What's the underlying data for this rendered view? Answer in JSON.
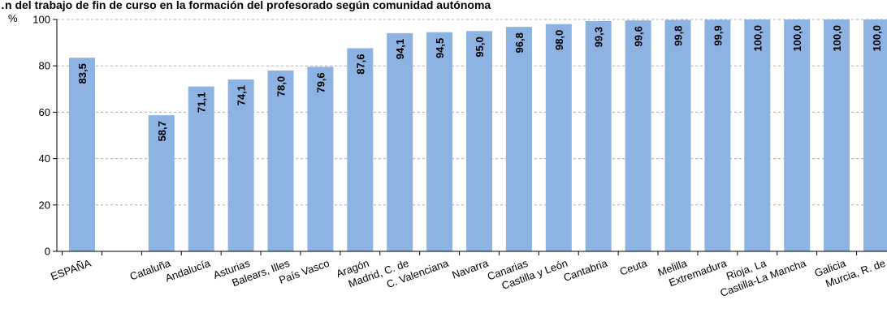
{
  "chart_data": {
    "type": "bar",
    "title": "…n del trabajo de fin de curso en la formación del profesorado según comunidad autónoma",
    "ylabel": "%",
    "xlabel": "",
    "ylim": [
      0,
      100
    ],
    "yticks": [
      0,
      20,
      40,
      60,
      80,
      100
    ],
    "grid": true,
    "bar_color": "#8db3e2",
    "categories": [
      "ESPAÑA",
      "Cataluña",
      "Andalucía",
      "Asturias",
      "Balears, Illes",
      "País Vasco",
      "Aragón",
      "Madrid, C. de",
      "C. Valenciana",
      "Navarra",
      "Canarias",
      "Castilla y León",
      "Cantabria",
      "Ceuta",
      "Melilla",
      "Extremadura",
      "Rioja, La",
      "Castilla-La Mancha",
      "Galicia",
      "Murcia, R. de"
    ],
    "values": [
      83.5,
      58.7,
      71.1,
      74.1,
      78.0,
      79.6,
      87.6,
      94.1,
      94.5,
      95.0,
      96.8,
      98.0,
      99.3,
      99.6,
      99.8,
      99.9,
      100.0,
      100.0,
      100.0,
      100.0
    ],
    "labels": [
      "83,5",
      "58,7",
      "71,1",
      "74,1",
      "78,0",
      "79,6",
      "87,6",
      "94,1",
      "94,5",
      "95,0",
      "96,8",
      "98,0",
      "99,3",
      "99,6",
      "99,8",
      "99,9",
      "100,0",
      "100,0",
      "100,0",
      "100,0"
    ]
  }
}
